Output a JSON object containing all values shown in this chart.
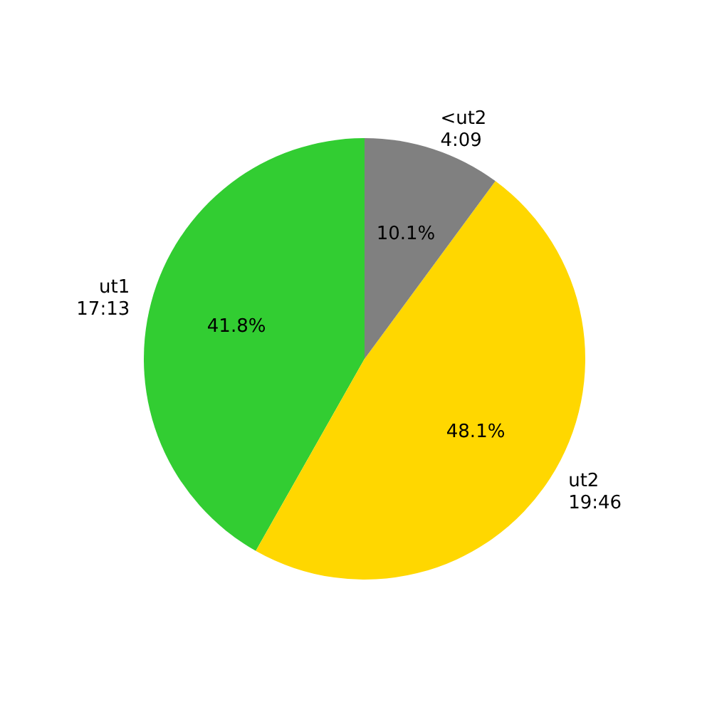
{
  "chart_data": {
    "type": "pie",
    "categories": [
      "ut1\n17:13",
      "ut2\n19:46",
      "<ut2\n4:09"
    ],
    "values": [
      41.8,
      48.1,
      10.1
    ],
    "colors": [
      "#32cd32",
      "#ffd700",
      "#808080"
    ],
    "value_labels": [
      "41.8%",
      "48.1%",
      "10.1%"
    ]
  }
}
